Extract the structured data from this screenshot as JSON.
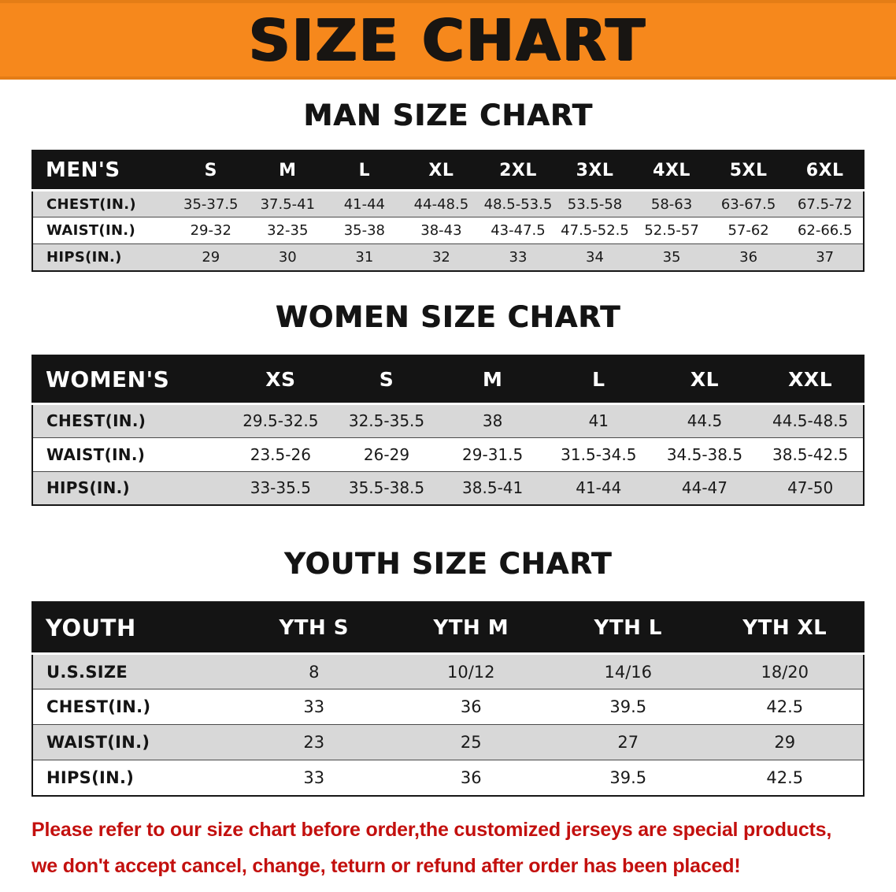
{
  "banner": {
    "title": "SIZE CHART"
  },
  "colors": {
    "banner_bg": "#F6881C",
    "header_bg": "#141414",
    "header_text": "#FFFFFF",
    "row_alt": "#D8D8D8",
    "row_base": "#FFFFFF",
    "text": "#111111",
    "note_red": "#C3100E"
  },
  "sections": [
    {
      "heading": "MAN SIZE CHART",
      "table": {
        "header": [
          "MEN'S",
          "S",
          "M",
          "L",
          "XL",
          "2XL",
          "3XL",
          "4XL",
          "5XL",
          "6XL"
        ],
        "rows": [
          [
            "CHEST(IN.)",
            "35-37.5",
            "37.5-41",
            "41-44",
            "44-48.5",
            "48.5-53.5",
            "53.5-58",
            "58-63",
            "63-67.5",
            "67.5-72"
          ],
          [
            "WAIST(IN.)",
            "29-32",
            "32-35",
            "35-38",
            "38-43",
            "43-47.5",
            "47.5-52.5",
            "52.5-57",
            "57-62",
            "62-66.5"
          ],
          [
            "HIPS(IN.)",
            "29",
            "30",
            "31",
            "32",
            "33",
            "34",
            "35",
            "36",
            "37"
          ]
        ]
      }
    },
    {
      "heading": "WOMEN SIZE CHART",
      "table": {
        "header": [
          "WOMEN'S",
          "XS",
          "S",
          "M",
          "L",
          "XL",
          "XXL"
        ],
        "rows": [
          [
            "CHEST(IN.)",
            "29.5-32.5",
            "32.5-35.5",
            "38",
            "41",
            "44.5",
            "44.5-48.5"
          ],
          [
            "WAIST(IN.)",
            "23.5-26",
            "26-29",
            "29-31.5",
            "31.5-34.5",
            "34.5-38.5",
            "38.5-42.5"
          ],
          [
            "HIPS(IN.)",
            "33-35.5",
            "35.5-38.5",
            "38.5-41",
            "41-44",
            "44-47",
            "47-50"
          ]
        ]
      }
    },
    {
      "heading": "YOUTH SIZE CHART",
      "table": {
        "header": [
          "YOUTH",
          "YTH S",
          "YTH M",
          "YTH L",
          "YTH XL"
        ],
        "rows": [
          [
            "U.S.SIZE",
            "8",
            "10/12",
            "14/16",
            "18/20"
          ],
          [
            "CHEST(IN.)",
            "33",
            "36",
            "39.5",
            "42.5"
          ],
          [
            "WAIST(IN.)",
            "23",
            "25",
            "27",
            "29"
          ],
          [
            "HIPS(IN.)",
            "33",
            "36",
            "39.5",
            "42.5"
          ]
        ]
      }
    }
  ],
  "footer": {
    "line1": "Please refer to our size chart before order,the customized jerseys are special products,",
    "line2": "we don't accept cancel, change, teturn or refund after order has been placed!"
  }
}
